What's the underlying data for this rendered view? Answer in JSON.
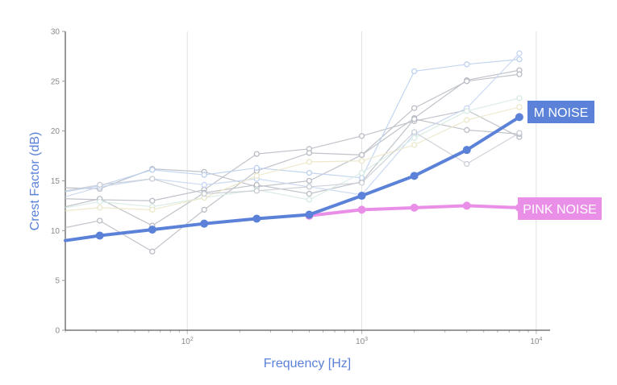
{
  "chart_data": {
    "type": "line",
    "xlabel": "Frequency [Hz]",
    "ylabel": "Crest Factor (dB)",
    "x_scale": "log",
    "xlim": [
      20,
      12000
    ],
    "ylim": [
      0,
      30
    ],
    "y_ticks": [
      0,
      5,
      10,
      15,
      20,
      25,
      30
    ],
    "x_ticks": [
      {
        "value": 100,
        "base": "10",
        "exp": "2"
      },
      {
        "value": 1000,
        "base": "10",
        "exp": "3"
      },
      {
        "value": 10000,
        "base": "10",
        "exp": "4"
      }
    ],
    "grid": "vertical",
    "x": [
      31.5,
      63,
      125,
      250,
      500,
      1000,
      2000,
      4000,
      8000
    ],
    "series": [
      {
        "name": "M NOISE",
        "color": "#5b82d8",
        "start_value": 9.0,
        "values": [
          9.5,
          10.1,
          10.7,
          11.2,
          11.6,
          13.5,
          15.5,
          18.1,
          21.4
        ]
      },
      {
        "name": "PINK NOISE",
        "color": "#ea8fe8",
        "start_value": null,
        "values": [
          null,
          null,
          null,
          null,
          11.5,
          12.1,
          12.3,
          12.5,
          12.3
        ]
      }
    ],
    "background_series": [
      {
        "color": "#b9bcc4",
        "start_value": 14.3,
        "values": [
          14.2,
          16.2,
          15.9,
          14.4,
          15.0,
          17.6,
          21.3,
          25.1,
          26.1
        ]
      },
      {
        "color": "#b9bcc4",
        "start_value": 13.2,
        "values": [
          13.1,
          13.0,
          14.1,
          17.7,
          18.2,
          19.5,
          21.0,
          22.1,
          19.4
        ]
      },
      {
        "color": "#b9bcc4",
        "start_value": 10.3,
        "values": [
          11.0,
          7.9,
          12.1,
          16.0,
          17.8,
          17.6,
          22.3,
          25.0,
          25.7
        ]
      },
      {
        "color": "#b9bcc4",
        "start_value": 12.4,
        "values": [
          13.2,
          10.5,
          13.8,
          14.6,
          13.7,
          14.9,
          21.2,
          20.1,
          19.7
        ]
      },
      {
        "color": "#bcd0ee",
        "start_value": 13.9,
        "values": [
          14.5,
          16.1,
          15.6,
          16.3,
          15.8,
          15.3,
          26.0,
          26.7,
          27.2
        ]
      },
      {
        "color": "#c6d6f2",
        "start_value": 13.4,
        "values": [
          14.4,
          15.2,
          14.6,
          15.2,
          14.4,
          13.6,
          19.7,
          22.3,
          27.8
        ]
      },
      {
        "color": "#d7ebe4",
        "start_value": 12.3,
        "values": [
          12.9,
          12.4,
          13.3,
          14.1,
          13.1,
          15.8,
          19.3,
          22.0,
          23.3
        ]
      },
      {
        "color": "#ece7c8",
        "start_value": 12.0,
        "values": [
          12.3,
          12.1,
          13.3,
          15.5,
          16.9,
          17.0,
          18.6,
          21.1,
          22.4
        ]
      },
      {
        "color": "#c9cdd5",
        "start_value": 14.0,
        "values": [
          14.6,
          15.2,
          13.7,
          14.0,
          14.4,
          14.8,
          19.9,
          16.7,
          19.8
        ]
      }
    ]
  }
}
